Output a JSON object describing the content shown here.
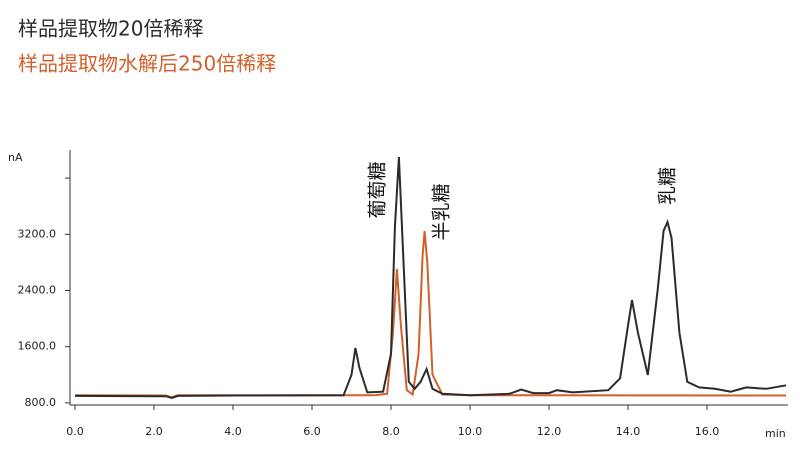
{
  "chart_data": {
    "type": "line",
    "xlabel": "min",
    "ylabel": "nA",
    "xlim": [
      0,
      18
    ],
    "ylim": [
      770,
      4400
    ],
    "xticks": [
      {
        "value": 0,
        "label": "0.0"
      },
      {
        "value": 2,
        "label": "2.0"
      },
      {
        "value": 4,
        "label": "4.0"
      },
      {
        "value": 6,
        "label": "6.0"
      },
      {
        "value": 8,
        "label": "8.0"
      },
      {
        "value": 10,
        "label": "10.0"
      },
      {
        "value": 12,
        "label": "12.0"
      },
      {
        "value": 14,
        "label": "14.0"
      },
      {
        "value": 16,
        "label": "16.0"
      }
    ],
    "yticks": [
      {
        "value": 800,
        "label": "800.0"
      },
      {
        "value": 1600,
        "label": "1600.0"
      },
      {
        "value": 2400,
        "label": "2400.0"
      },
      {
        "value": 3200,
        "label": "3200.0"
      }
    ],
    "y_minor_ticks": [
      4000
    ],
    "annotations": [
      "葡萄糖",
      "半乳糖",
      "乳糖"
    ],
    "series": [
      {
        "name": "样品提取物20倍稀释",
        "color": "#2b2b2b",
        "x": [
          0,
          2.3,
          2.45,
          2.6,
          4,
          6.8,
          7.0,
          7.1,
          7.2,
          7.4,
          7.8,
          8.0,
          8.1,
          8.2,
          8.3,
          8.45,
          8.6,
          8.75,
          8.9,
          9.05,
          9.3,
          10,
          11,
          11.3,
          11.6,
          12,
          12.2,
          12.6,
          13.5,
          13.8,
          14.0,
          14.1,
          14.25,
          14.5,
          14.75,
          14.9,
          15.0,
          15.1,
          15.3,
          15.5,
          15.8,
          16.2,
          16.6,
          16.8,
          17.0,
          17.5,
          18
        ],
        "values": [
          900,
          895,
          870,
          900,
          905,
          910,
          1200,
          1581,
          1300,
          950,
          960,
          1500,
          3300,
          4300,
          3000,
          1100,
          1000,
          1100,
          1282,
          1000,
          930,
          910,
          930,
          990,
          940,
          940,
          980,
          950,
          980,
          1150,
          1900,
          2265,
          1800,
          1197,
          2400,
          3250,
          3375,
          3150,
          1800,
          1100,
          1020,
          1000,
          960,
          990,
          1020,
          1000,
          1050
        ]
      },
      {
        "name": "样品提取物水解后250倍稀释",
        "color": "#d2602a",
        "x": [
          0,
          2.3,
          2.45,
          2.6,
          7.6,
          7.9,
          8.05,
          8.15,
          8.25,
          8.4,
          8.55,
          8.7,
          8.8,
          8.85,
          8.92,
          9.05,
          9.3,
          10,
          18
        ],
        "values": [
          910,
          905,
          880,
          910,
          910,
          930,
          1800,
          2706,
          1900,
          980,
          920,
          1500,
          2900,
          3247,
          2800,
          1200,
          920,
          910,
          905
        ]
      }
    ]
  }
}
